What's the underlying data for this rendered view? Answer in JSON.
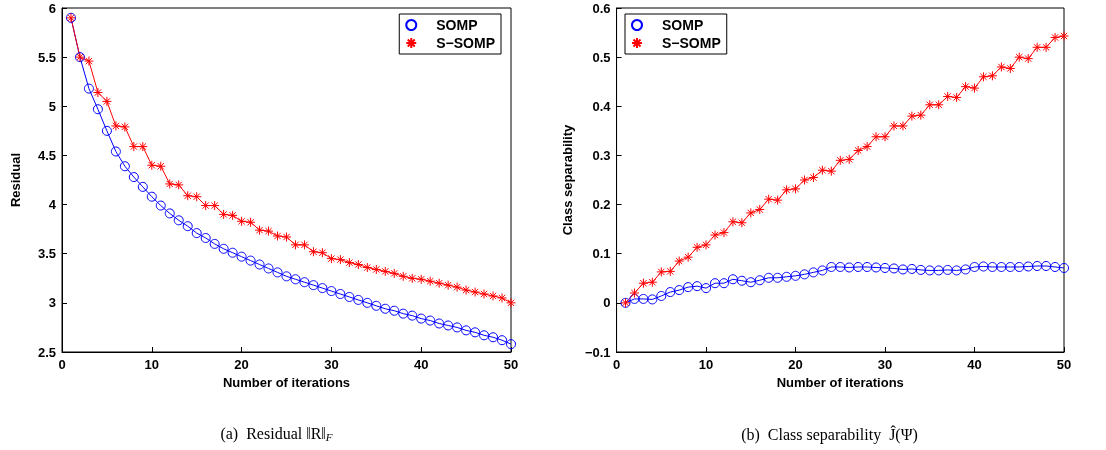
{
  "chart_data": [
    {
      "type": "line",
      "xlabel": "Number of iterations",
      "ylabel": "Residual",
      "annotations": [
        "(a)  Residual ‖R‖$_{F}$"
      ],
      "x": [
        1,
        2,
        3,
        4,
        5,
        6,
        7,
        8,
        9,
        10,
        11,
        12,
        13,
        14,
        15,
        16,
        17,
        18,
        19,
        20,
        21,
        22,
        23,
        24,
        25,
        26,
        27,
        28,
        29,
        30,
        31,
        32,
        33,
        34,
        35,
        36,
        37,
        38,
        39,
        40,
        41,
        42,
        43,
        44,
        45,
        46,
        47,
        48,
        49,
        50
      ],
      "xlim": [
        0,
        50
      ],
      "xticks": [
        0,
        10,
        20,
        30,
        40,
        50
      ],
      "ylim": [
        2.5,
        6
      ],
      "yticks": [
        2.5,
        3,
        3.5,
        4,
        4.5,
        5,
        5.5,
        6
      ],
      "grid": false,
      "legend": "top right",
      "series": [
        {
          "name": "SOMP",
          "color": "#0000ff",
          "marker": "circle",
          "values": [
            5.9,
            5.5,
            5.18,
            4.97,
            4.75,
            4.54,
            4.39,
            4.28,
            4.18,
            4.08,
            3.99,
            3.91,
            3.84,
            3.78,
            3.71,
            3.66,
            3.6,
            3.55,
            3.51,
            3.47,
            3.43,
            3.39,
            3.35,
            3.31,
            3.27,
            3.24,
            3.21,
            3.18,
            3.15,
            3.12,
            3.09,
            3.06,
            3.03,
            3.0,
            2.97,
            2.94,
            2.92,
            2.89,
            2.87,
            2.84,
            2.82,
            2.79,
            2.77,
            2.75,
            2.72,
            2.7,
            2.67,
            2.65,
            2.62,
            2.58
          ]
        },
        {
          "name": "S−SOMP",
          "color": "#ff0000",
          "marker": "cross",
          "values": [
            5.9,
            5.5,
            5.46,
            5.14,
            5.05,
            4.8,
            4.79,
            4.59,
            4.59,
            4.4,
            4.39,
            4.21,
            4.2,
            4.09,
            4.08,
            3.99,
            3.99,
            3.9,
            3.89,
            3.83,
            3.82,
            3.74,
            3.73,
            3.68,
            3.67,
            3.59,
            3.59,
            3.52,
            3.51,
            3.45,
            3.44,
            3.41,
            3.39,
            3.36,
            3.34,
            3.32,
            3.3,
            3.27,
            3.25,
            3.24,
            3.22,
            3.2,
            3.18,
            3.16,
            3.13,
            3.11,
            3.09,
            3.07,
            3.05,
            3.0
          ]
        }
      ]
    },
    {
      "type": "line",
      "xlabel": "Number of iterations",
      "ylabel": "Class separability",
      "annotations": [
        "(b)  Class separability  Ĵ(Ψ)"
      ],
      "x": [
        1,
        2,
        3,
        4,
        5,
        6,
        7,
        8,
        9,
        10,
        11,
        12,
        13,
        14,
        15,
        16,
        17,
        18,
        19,
        20,
        21,
        22,
        23,
        24,
        25,
        26,
        27,
        28,
        29,
        30,
        31,
        32,
        33,
        34,
        35,
        36,
        37,
        38,
        39,
        40,
        41,
        42,
        43,
        44,
        45,
        46,
        47,
        48,
        49,
        50
      ],
      "xlim": [
        0,
        50
      ],
      "xticks": [
        0,
        10,
        20,
        30,
        40,
        50
      ],
      "ylim": [
        -0.1,
        0.6
      ],
      "yticks": [
        {
          "value": -0.1,
          "label": "−0.1"
        },
        0,
        0.1,
        0.2,
        0.3,
        0.4,
        0.5,
        0.6
      ],
      "grid": false,
      "legend": "top left",
      "series": [
        {
          "name": "SOMP",
          "color": "#0000ff",
          "marker": "circle",
          "values": [
            0,
            0.008,
            0.008,
            0.007,
            0.014,
            0.022,
            0.026,
            0.032,
            0.034,
            0.03,
            0.04,
            0.04,
            0.048,
            0.045,
            0.042,
            0.046,
            0.051,
            0.051,
            0.053,
            0.055,
            0.058,
            0.062,
            0.066,
            0.073,
            0.073,
            0.072,
            0.073,
            0.073,
            0.072,
            0.071,
            0.07,
            0.068,
            0.069,
            0.067,
            0.066,
            0.066,
            0.067,
            0.066,
            0.068,
            0.073,
            0.074,
            0.073,
            0.073,
            0.073,
            0.073,
            0.074,
            0.075,
            0.075,
            0.073,
            0.071
          ]
        },
        {
          "name": "S−SOMP",
          "color": "#ff0000",
          "marker": "cross",
          "values": [
            0,
            0.02,
            0.04,
            0.042,
            0.063,
            0.064,
            0.085,
            0.093,
            0.113,
            0.118,
            0.138,
            0.143,
            0.165,
            0.163,
            0.183,
            0.19,
            0.211,
            0.209,
            0.23,
            0.232,
            0.25,
            0.255,
            0.27,
            0.268,
            0.29,
            0.292,
            0.31,
            0.318,
            0.338,
            0.338,
            0.36,
            0.36,
            0.38,
            0.382,
            0.403,
            0.403,
            0.42,
            0.418,
            0.44,
            0.437,
            0.46,
            0.462,
            0.48,
            0.477,
            0.5,
            0.497,
            0.52,
            0.52,
            0.54,
            0.543
          ]
        }
      ]
    }
  ]
}
